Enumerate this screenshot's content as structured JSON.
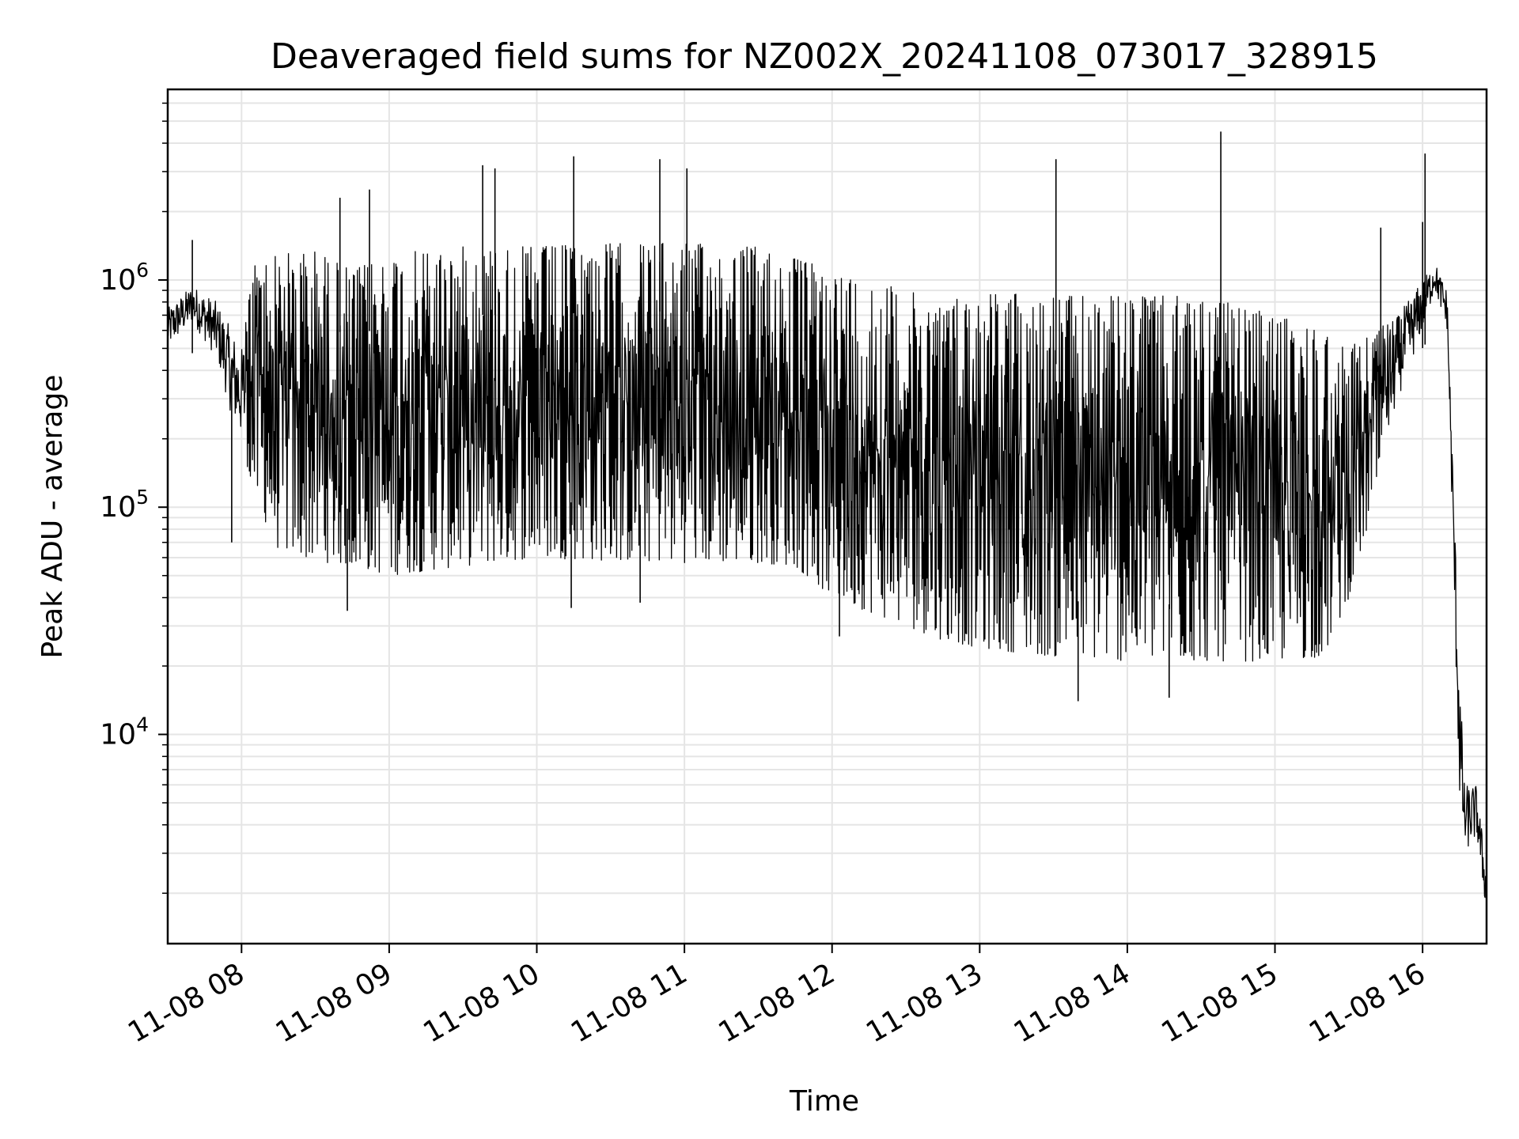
{
  "chart_data": {
    "type": "line",
    "title": "Deaveraged field sums for NZ002X_20241108_073017_328915",
    "xlabel": "Time",
    "ylabel": "Peak ADU - average",
    "yscale": "log",
    "grid": true,
    "grid_minor": true,
    "line_color": "#000000",
    "grid_color": "#e5e5e5",
    "x_range": [
      "11-08 07:30",
      "11-08 16:26"
    ],
    "ylim": [
      1200,
      6900000
    ],
    "x_ticks": [
      {
        "label": "11-08 08",
        "time": "08:00"
      },
      {
        "label": "11-08 09",
        "time": "09:00"
      },
      {
        "label": "11-08 10",
        "time": "10:00"
      },
      {
        "label": "11-08 11",
        "time": "11:00"
      },
      {
        "label": "11-08 12",
        "time": "12:00"
      },
      {
        "label": "11-08 13",
        "time": "13:00"
      },
      {
        "label": "11-08 14",
        "time": "14:00"
      },
      {
        "label": "11-08 15",
        "time": "15:00"
      },
      {
        "label": "11-08 16",
        "time": "16:00"
      }
    ],
    "y_ticks": [
      {
        "base": "10",
        "exp": "4",
        "value": 10000
      },
      {
        "base": "10",
        "exp": "5",
        "value": 100000
      },
      {
        "base": "10",
        "exp": "6",
        "value": 1000000
      }
    ],
    "series": [
      {
        "envelope": [
          {
            "time": "07:30",
            "low": 500000,
            "high": 750000
          },
          {
            "time": "07:40",
            "low": 650000,
            "high": 950000
          },
          {
            "time": "07:50",
            "low": 450000,
            "high": 800000
          },
          {
            "time": "07:56",
            "low": 250000,
            "high": 600000
          },
          {
            "time": "08:00",
            "low": 200000,
            "high": 500000
          },
          {
            "time": "08:05",
            "low": 110000,
            "high": 1200000
          },
          {
            "time": "08:15",
            "low": 65000,
            "high": 1300000
          },
          {
            "time": "08:30",
            "low": 58000,
            "high": 1350000
          },
          {
            "time": "08:45",
            "low": 55000,
            "high": 1100000
          },
          {
            "time": "09:00",
            "low": 50000,
            "high": 1300000
          },
          {
            "time": "09:30",
            "low": 55000,
            "high": 1400000
          },
          {
            "time": "10:00",
            "low": 60000,
            "high": 1400000
          },
          {
            "time": "10:30",
            "low": 58000,
            "high": 1450000
          },
          {
            "time": "11:00",
            "low": 57000,
            "high": 1450000
          },
          {
            "time": "11:30",
            "low": 57000,
            "high": 1400000
          },
          {
            "time": "11:45",
            "low": 55000,
            "high": 1250000
          },
          {
            "time": "12:00",
            "low": 40000,
            "high": 1100000
          },
          {
            "time": "12:30",
            "low": 30000,
            "high": 900000
          },
          {
            "time": "12:45",
            "low": 26000,
            "high": 800000
          },
          {
            "time": "13:00",
            "low": 24000,
            "high": 900000
          },
          {
            "time": "13:30",
            "low": 22000,
            "high": 850000
          },
          {
            "time": "14:00",
            "low": 21000,
            "high": 850000
          },
          {
            "time": "14:30",
            "low": 21000,
            "high": 850000
          },
          {
            "time": "15:00",
            "low": 21000,
            "high": 700000
          },
          {
            "time": "15:20",
            "low": 22000,
            "high": 600000
          },
          {
            "time": "15:30",
            "low": 40000,
            "high": 500000
          },
          {
            "time": "15:40",
            "low": 100000,
            "high": 600000
          },
          {
            "time": "15:50",
            "low": 300000,
            "high": 700000
          },
          {
            "time": "16:00",
            "low": 600000,
            "high": 1000000
          },
          {
            "time": "16:05",
            "low": 900000,
            "high": 1200000
          },
          {
            "time": "16:10",
            "low": 600000,
            "high": 900000
          },
          {
            "time": "16:15",
            "low": 5000,
            "high": 20000
          },
          {
            "time": "16:17",
            "low": 3000,
            "high": 6000
          },
          {
            "time": "16:22",
            "low": 3500,
            "high": 6000
          },
          {
            "time": "16:26",
            "low": 1600,
            "high": 2500
          }
        ],
        "spikes": [
          {
            "time": "07:40",
            "value": 1500000
          },
          {
            "time": "07:56",
            "value": 70000
          },
          {
            "time": "08:40",
            "value": 2300000
          },
          {
            "time": "08:52",
            "value": 2500000
          },
          {
            "time": "08:43",
            "value": 35000
          },
          {
            "time": "09:38",
            "value": 3200000
          },
          {
            "time": "09:43",
            "value": 3100000
          },
          {
            "time": "10:15",
            "value": 3500000
          },
          {
            "time": "10:14",
            "value": 36000
          },
          {
            "time": "10:42",
            "value": 38000
          },
          {
            "time": "10:50",
            "value": 3400000
          },
          {
            "time": "11:01",
            "value": 3100000
          },
          {
            "time": "12:03",
            "value": 27000
          },
          {
            "time": "13:31",
            "value": 3400000
          },
          {
            "time": "13:40",
            "value": 14000
          },
          {
            "time": "14:17",
            "value": 14500
          },
          {
            "time": "14:38",
            "value": 4500000
          },
          {
            "time": "15:43",
            "value": 1700000
          },
          {
            "time": "16:01",
            "value": 3600000
          },
          {
            "time": "16:00",
            "value": 1800000
          }
        ]
      }
    ]
  }
}
